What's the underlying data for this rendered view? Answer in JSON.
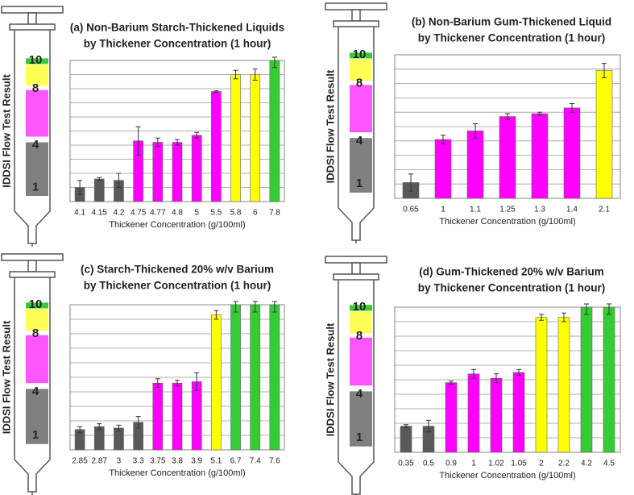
{
  "chart_data": [
    {
      "type": "bar",
      "title": [
        "(a) Non-Barium Starch-Thickened Liquids",
        "by Thickener Concentration (1 hour)"
      ],
      "ylabel": "IDDSI Flow Test Result",
      "xlabel": "Thickener Concentration (g/100ml)",
      "categories": [
        "4.1",
        "4.15",
        "4.2",
        "4.75",
        "4.77",
        "4.8",
        "5",
        "5.5",
        "5.8",
        "6",
        "7.8"
      ],
      "values": [
        1.0,
        1.6,
        1.5,
        4.3,
        4.2,
        4.2,
        4.7,
        7.8,
        9.0,
        9.0,
        10
      ],
      "errors": [
        0.5,
        0.1,
        0.5,
        1.0,
        0.3,
        0.2,
        0.2,
        0.05,
        0.3,
        0.4,
        0.5
      ],
      "colors": [
        "#595959",
        "#595959",
        "#595959",
        "#ff00ff",
        "#ff00ff",
        "#ff00ff",
        "#ff00ff",
        "#ff00ff",
        "#ffff00",
        "#ffff00",
        "#33cc33"
      ],
      "ylim": [
        0,
        10
      ],
      "yticks": [
        1,
        4,
        8,
        10
      ],
      "ygrid": [
        0,
        1,
        2,
        3,
        4,
        5,
        6,
        7,
        8,
        9,
        10
      ]
    },
    {
      "type": "bar",
      "title": [
        "(b) Non-Barium Gum-Thickened Liquid",
        "by Thickener Concentration  (1 hour)"
      ],
      "ylabel": "IDDSI Flow Test Result",
      "xlabel": "Thickener Concentration (g/100ml)",
      "categories": [
        "0.65",
        "1",
        "1.1",
        "1.25",
        "1.3",
        "1.4",
        "2.1"
      ],
      "values": [
        1.1,
        4.1,
        4.7,
        5.7,
        5.9,
        6.3,
        8.9
      ],
      "errors": [
        0.6,
        0.3,
        0.5,
        0.2,
        0.1,
        0.3,
        0.5
      ],
      "colors": [
        "#595959",
        "#ff00ff",
        "#ff00ff",
        "#ff00ff",
        "#ff00ff",
        "#ff00ff",
        "#ffff00"
      ],
      "ylim": [
        0,
        10
      ],
      "yticks": [
        1,
        4,
        8,
        10
      ],
      "ygrid": [
        0,
        1,
        2,
        3,
        4,
        5,
        6,
        7,
        8,
        9,
        10
      ]
    },
    {
      "type": "bar",
      "title": [
        "(c) Starch-Thickened 20% w/v Barium",
        "by Thickener Concentration  (1 hour)"
      ],
      "ylabel": "IDDSI Flow Test Result",
      "xlabel": "Thickener Concentration (g/100ml)",
      "categories": [
        "2.85",
        "2.87",
        "3",
        "3.3",
        "3.75",
        "3.8",
        "3.9",
        "5.1",
        "6.7",
        "7.4",
        "7.6"
      ],
      "values": [
        1.4,
        1.6,
        1.5,
        1.9,
        4.6,
        4.6,
        4.7,
        9.3,
        10,
        10,
        10
      ],
      "errors": [
        0.2,
        0.2,
        0.2,
        0.4,
        0.3,
        0.2,
        0.6,
        0.3,
        0.5,
        0.5,
        0.5
      ],
      "colors": [
        "#595959",
        "#595959",
        "#595959",
        "#595959",
        "#ff00ff",
        "#ff00ff",
        "#ff00ff",
        "#ffff00",
        "#33cc33",
        "#33cc33",
        "#33cc33"
      ],
      "ylim": [
        0,
        10
      ],
      "yticks": [
        1,
        4,
        8,
        10
      ],
      "ygrid": [
        0,
        1,
        2,
        3,
        4,
        5,
        6,
        7,
        8,
        9,
        10
      ]
    },
    {
      "type": "bar",
      "title": [
        "(d) Gum-Thickened 20% w/v Barium",
        "by Thickener Concentration  (1 hour)"
      ],
      "ylabel": "IDDSI Flow Test Result",
      "xlabel": "Thickener Concentration (g/100ml)",
      "categories": [
        "0.35",
        "0.5",
        "0.9",
        "1",
        "1.02",
        "1.05",
        "2",
        "2.2",
        "4.2",
        "4.5"
      ],
      "values": [
        1.8,
        1.8,
        4.8,
        5.4,
        5.1,
        5.5,
        9.3,
        9.3,
        10,
        10
      ],
      "errors": [
        0.1,
        0.4,
        0.1,
        0.3,
        0.3,
        0.2,
        0.2,
        0.3,
        0.5,
        0.5
      ],
      "colors": [
        "#595959",
        "#595959",
        "#ff00ff",
        "#ff00ff",
        "#ff00ff",
        "#ff00ff",
        "#ffff00",
        "#ffff00",
        "#33cc33",
        "#33cc33"
      ],
      "ylim": [
        0,
        10
      ],
      "yticks": [
        1,
        4,
        8,
        10
      ],
      "ygrid": [
        0,
        1,
        2,
        3,
        4,
        5,
        6,
        7,
        8,
        9,
        10
      ]
    }
  ]
}
